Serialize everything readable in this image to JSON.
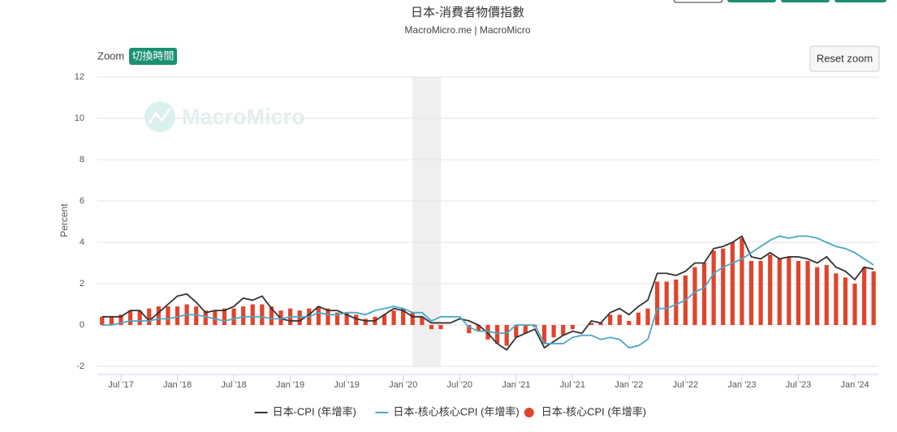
{
  "chart_data": {
    "type": "combo",
    "title": "日本-消費者物價指數",
    "subtitle": "MacroMicro.me | MacroMicro",
    "watermark": "MacroMicro",
    "zoom_label": "Zoom",
    "zoom_button": "切換時間",
    "reset_button": "Reset zoom",
    "y_label": "Percent",
    "x": [
      "2017-05",
      "2017-06",
      "2017-07",
      "2017-08",
      "2017-09",
      "2017-10",
      "2017-11",
      "2017-12",
      "2018-01",
      "2018-02",
      "2018-03",
      "2018-04",
      "2018-05",
      "2018-06",
      "2018-07",
      "2018-08",
      "2018-09",
      "2018-10",
      "2018-11",
      "2018-12",
      "2019-01",
      "2019-02",
      "2019-03",
      "2019-04",
      "2019-05",
      "2019-06",
      "2019-07",
      "2019-08",
      "2019-09",
      "2019-10",
      "2019-11",
      "2019-12",
      "2020-01",
      "2020-02",
      "2020-03",
      "2020-04",
      "2020-05",
      "2020-06",
      "2020-07",
      "2020-08",
      "2020-09",
      "2020-10",
      "2020-11",
      "2020-12",
      "2021-01",
      "2021-02",
      "2021-03",
      "2021-04",
      "2021-05",
      "2021-06",
      "2021-07",
      "2021-08",
      "2021-09",
      "2021-10",
      "2021-11",
      "2021-12",
      "2022-01",
      "2022-02",
      "2022-03",
      "2022-04",
      "2022-05",
      "2022-06",
      "2022-07",
      "2022-08",
      "2022-09",
      "2022-10",
      "2022-11",
      "2022-12",
      "2023-01",
      "2023-02",
      "2023-03",
      "2023-04",
      "2023-05",
      "2023-06",
      "2023-07",
      "2023-08",
      "2023-09",
      "2023-10",
      "2023-11",
      "2023-12",
      "2024-01",
      "2024-02",
      "2024-03"
    ],
    "series": [
      {
        "name": "日本-核心CPI (年增率)",
        "type": "bar",
        "color": "#e0442c",
        "values": [
          0.4,
          0.4,
          0.5,
          0.7,
          0.7,
          0.8,
          0.9,
          0.9,
          0.9,
          1.0,
          0.9,
          0.7,
          0.7,
          0.8,
          0.8,
          0.9,
          1.0,
          1.0,
          0.9,
          0.7,
          0.8,
          0.7,
          0.8,
          0.9,
          0.8,
          0.6,
          0.6,
          0.5,
          0.3,
          0.4,
          0.5,
          0.7,
          0.8,
          0.6,
          0.4,
          -0.2,
          -0.2,
          0.0,
          0.0,
          -0.4,
          -0.3,
          -0.7,
          -0.9,
          -1.0,
          -0.6,
          -0.4,
          -0.1,
          -0.9,
          -0.6,
          -0.5,
          -0.2,
          0.0,
          0.1,
          0.1,
          0.5,
          0.5,
          0.2,
          0.6,
          0.8,
          2.1,
          2.1,
          2.2,
          2.4,
          2.8,
          3.0,
          3.6,
          3.7,
          4.0,
          4.2,
          3.1,
          3.1,
          3.4,
          3.2,
          3.3,
          3.1,
          3.1,
          2.8,
          2.9,
          2.5,
          2.3,
          2.0,
          2.8,
          2.6
        ]
      },
      {
        "name": "日本-CPI (年增率)",
        "type": "line",
        "color": "#333333",
        "values": [
          0.4,
          0.4,
          0.4,
          0.7,
          0.7,
          0.2,
          0.6,
          1.0,
          1.4,
          1.5,
          1.1,
          0.6,
          0.7,
          0.7,
          0.9,
          1.3,
          1.2,
          1.4,
          0.8,
          0.3,
          0.2,
          0.2,
          0.5,
          0.9,
          0.7,
          0.7,
          0.5,
          0.3,
          0.2,
          0.2,
          0.5,
          0.8,
          0.7,
          0.4,
          0.4,
          0.1,
          0.1,
          0.1,
          0.3,
          0.2,
          0.0,
          -0.4,
          -0.9,
          -1.2,
          -0.6,
          -0.4,
          -0.2,
          -1.1,
          -0.8,
          -0.5,
          -0.3,
          -0.4,
          0.2,
          0.1,
          0.6,
          0.8,
          0.5,
          0.9,
          1.2,
          2.5,
          2.5,
          2.4,
          2.6,
          3.0,
          3.0,
          3.7,
          3.8,
          4.0,
          4.3,
          3.3,
          3.2,
          3.5,
          3.2,
          3.3,
          3.3,
          3.2,
          3.0,
          3.3,
          2.8,
          2.6,
          2.2,
          2.8,
          2.7
        ]
      },
      {
        "name": "日本-核心核心CPI (年增率)",
        "type": "line",
        "color": "#4aa8c8",
        "values": [
          0.0,
          0.0,
          0.1,
          0.2,
          0.2,
          0.2,
          0.3,
          0.3,
          0.4,
          0.5,
          0.5,
          0.4,
          0.3,
          0.2,
          0.3,
          0.4,
          0.4,
          0.4,
          0.3,
          0.3,
          0.4,
          0.4,
          0.4,
          0.6,
          0.5,
          0.5,
          0.6,
          0.6,
          0.5,
          0.7,
          0.8,
          0.9,
          0.8,
          0.6,
          0.6,
          0.2,
          0.4,
          0.4,
          0.4,
          -0.1,
          -0.3,
          -0.3,
          -0.4,
          -0.4,
          0.0,
          0.0,
          0.0,
          -0.9,
          -0.9,
          -0.9,
          -0.6,
          -0.5,
          -0.5,
          -0.7,
          -0.6,
          -0.7,
          -1.1,
          -1.0,
          -0.7,
          0.8,
          0.8,
          1.0,
          1.2,
          1.6,
          1.8,
          2.5,
          2.8,
          3.0,
          3.2,
          3.5,
          3.8,
          4.1,
          4.3,
          4.2,
          4.3,
          4.3,
          4.2,
          4.0,
          3.8,
          3.7,
          3.5,
          3.2,
          2.9
        ]
      }
    ],
    "legend_order": [
      1,
      2,
      0
    ],
    "shading": {
      "from": "2020-02",
      "to": "2020-05",
      "color": "#efefef"
    },
    "ylim": [
      -2,
      12
    ],
    "yticks": [
      -2,
      0,
      2,
      4,
      6,
      8,
      10,
      12
    ],
    "xticks": [
      {
        "value": "2017-07",
        "label": "Jul '17"
      },
      {
        "value": "2018-01",
        "label": "Jan '18"
      },
      {
        "value": "2018-07",
        "label": "Jul '18"
      },
      {
        "value": "2019-01",
        "label": "Jan '19"
      },
      {
        "value": "2019-07",
        "label": "Jul '19"
      },
      {
        "value": "2020-01",
        "label": "Jan '20"
      },
      {
        "value": "2020-07",
        "label": "Jul '20"
      },
      {
        "value": "2021-01",
        "label": "Jan '21"
      },
      {
        "value": "2021-07",
        "label": "Jul '21"
      },
      {
        "value": "2022-01",
        "label": "Jan '22"
      },
      {
        "value": "2022-07",
        "label": "Jul '22"
      },
      {
        "value": "2023-01",
        "label": "Jan '23"
      },
      {
        "value": "2023-07",
        "label": "Jul '23"
      },
      {
        "value": "2024-01",
        "label": "Jan '24"
      }
    ],
    "grid": true
  }
}
